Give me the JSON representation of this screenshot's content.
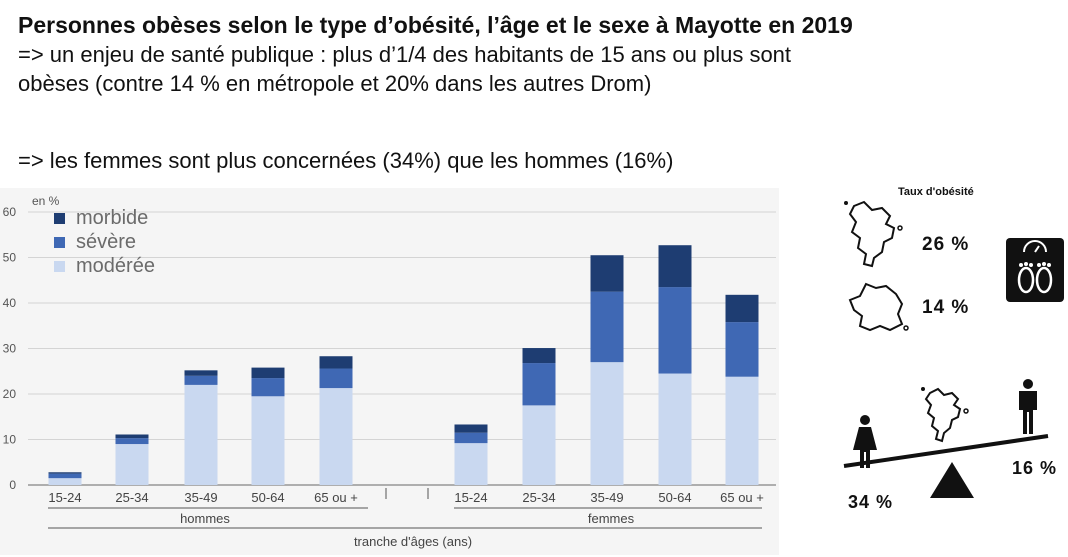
{
  "header": {
    "title": "Personnes obèses selon le type d’obésité, l’âge et le sexe à Mayotte en 2019",
    "line2": "=> un enjeu de santé publique : plus d’1/4 des habitants de 15 ans ou plus sont",
    "line3": "obèses (contre 14 % en métropole et 20% dans les autres Drom)",
    "line4": "=> les femmes sont plus concernées (34%) que les hommes (16%)"
  },
  "chart_data": {
    "type": "bar",
    "stacked": true,
    "unit_label": "en %",
    "ylim": [
      0,
      60
    ],
    "yticks": [
      "0",
      "10",
      "20",
      "30",
      "40",
      "50",
      "60"
    ],
    "categories": [
      "15-24",
      "25-34",
      "35-49",
      "50-64",
      "65 ou +",
      "15-24",
      "25-34",
      "35-49",
      "50-64",
      "65 ou +"
    ],
    "groups": [
      "hommes",
      "femmes"
    ],
    "xlabel": "tranche d'âges (ans)",
    "series": [
      {
        "name": "modérée",
        "color": "#c9d8f0",
        "values": [
          1.5,
          9,
          22,
          19.5,
          21.3,
          9.2,
          17.5,
          27,
          24.5,
          23.8
        ]
      },
      {
        "name": "sévère",
        "color": "#3f68b4",
        "values": [
          1,
          1.3,
          2,
          4,
          4.3,
          2.3,
          9.3,
          15.5,
          19,
          12
        ]
      },
      {
        "name": "morbide",
        "color": "#1e3d72",
        "values": [
          0.3,
          0.8,
          1.2,
          2.3,
          2.7,
          1.8,
          3.3,
          8,
          9.2,
          6
        ]
      }
    ],
    "legend_position": "top-left"
  },
  "side": {
    "taux_label": "Taux d'obésité",
    "mayotte_pct": "26 %",
    "france_pct": "14 %",
    "femmes_pct": "34 %",
    "hommes_pct": "16 %"
  }
}
